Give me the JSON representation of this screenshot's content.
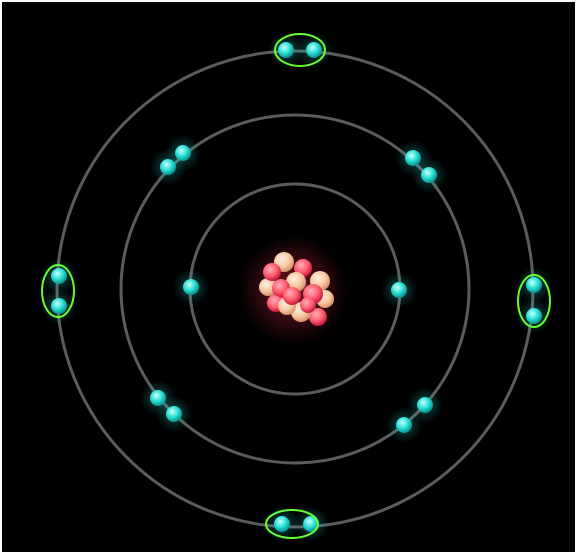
{
  "diagram": {
    "subject": "atom-model",
    "shells": [
      {
        "id": 1,
        "electron_count": 2
      },
      {
        "id": 2,
        "electron_count": 8
      },
      {
        "id": 3,
        "electron_count": 8,
        "highlighted_pairs": 4
      }
    ],
    "nucleus": {
      "particle_count": 15
    },
    "colors": {
      "background": "#000000",
      "orbit": "#5c5c5c",
      "electron": "#27e0d6",
      "electron_highlight": "#c8fffb",
      "nucleus_proton": "#ff5a6e",
      "nucleus_neutron": "#f7c7a2",
      "pair_highlight": "#66ff33"
    }
  }
}
